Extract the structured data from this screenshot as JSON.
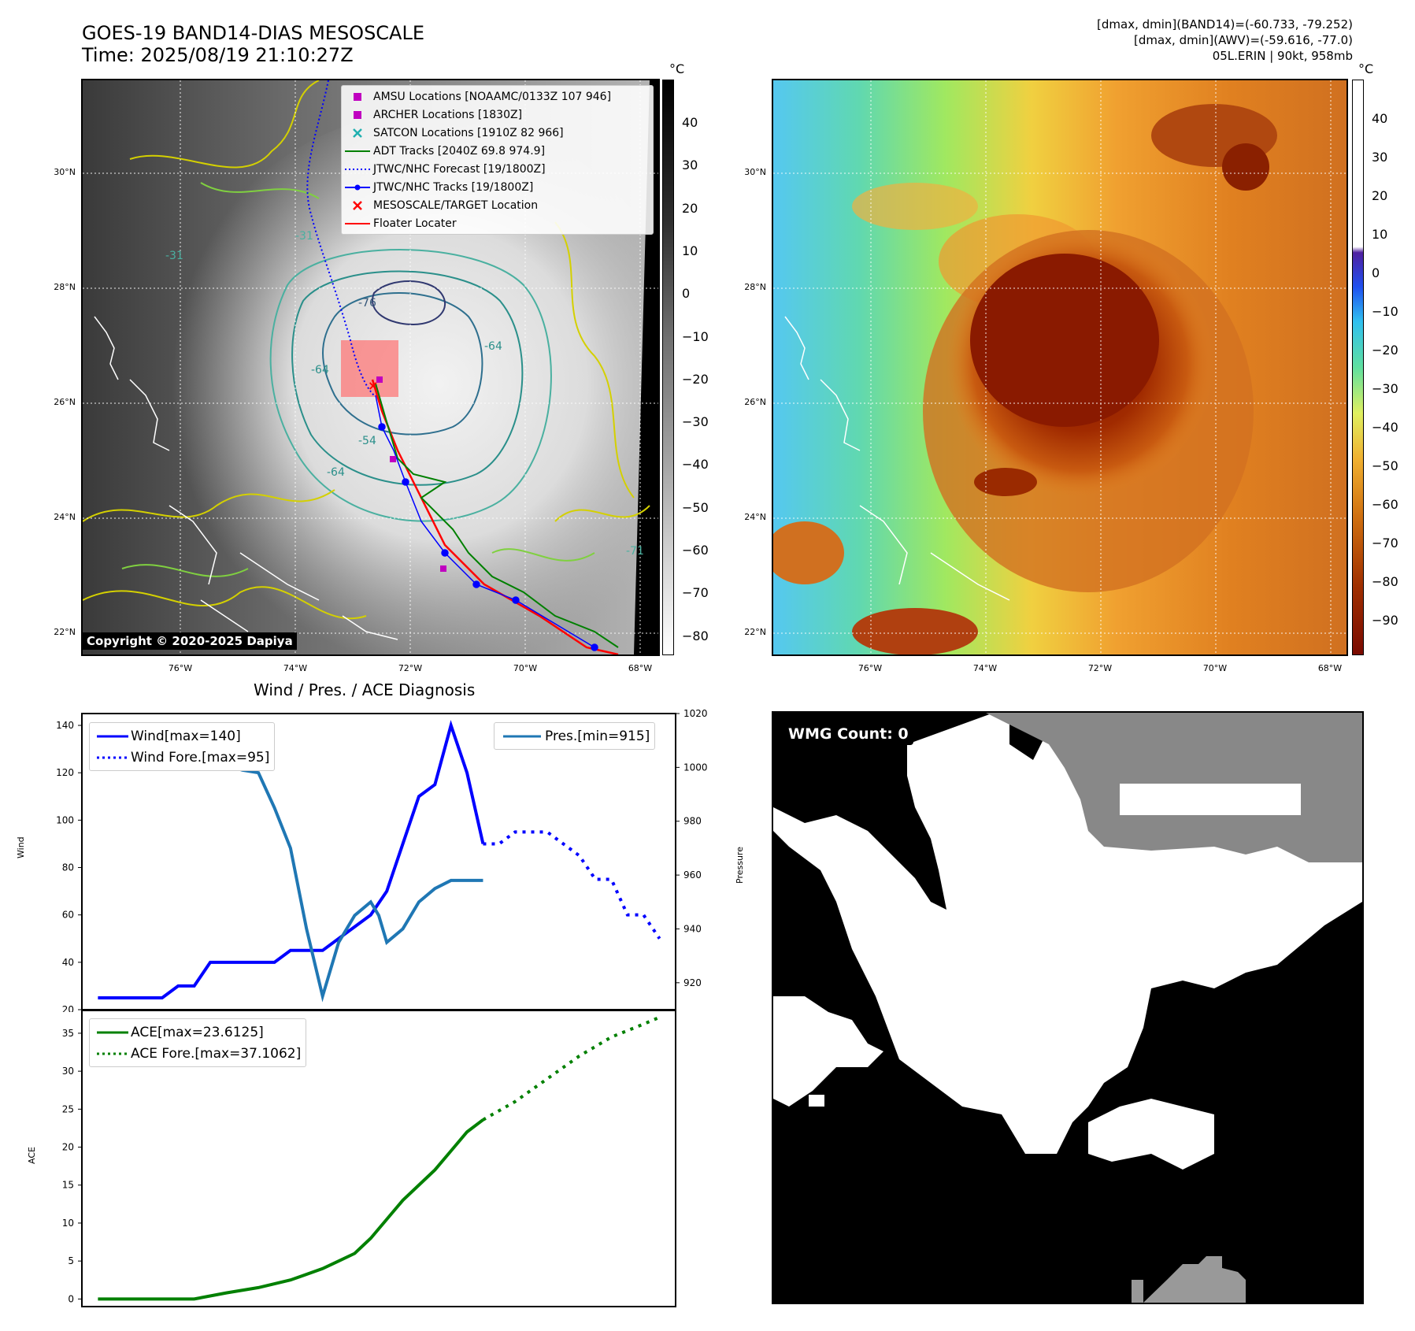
{
  "header": {
    "title_line1": "GOES-19 BAND14-DIAS MESOSCALE",
    "title_line2": "Time: 2025/08/19 21:10:27Z",
    "info_line1": "[dmax, dmin](BAND14)=(-60.733, -79.252)",
    "info_line2": "[dmax, dmin](AWV)=(-59.616, -77.0)",
    "info_line3": "05L.ERIN | 90kt, 958mb"
  },
  "map_axes": {
    "lat_labels": [
      "30°N",
      "28°N",
      "26°N",
      "24°N",
      "22°N"
    ],
    "lon_labels": [
      "76°W",
      "74°W",
      "72°W",
      "70°W",
      "68°W"
    ]
  },
  "ir_colorbar": {
    "unit": "°C",
    "ticks": [
      "40",
      "30",
      "20",
      "10",
      "0",
      "−10",
      "−20",
      "−30",
      "−40",
      "−50",
      "−60",
      "−70",
      "−80"
    ]
  },
  "awv_colorbar": {
    "unit": "°C",
    "ticks": [
      "40",
      "30",
      "20",
      "10",
      "0",
      "−10",
      "−20",
      "−30",
      "−40",
      "−50",
      "−60",
      "−70",
      "−80",
      "−90"
    ]
  },
  "ir_legend": [
    {
      "label": "AMSU Locations [NOAAMC/0133Z 107 946]",
      "symbol": "square",
      "color": "#c000c0"
    },
    {
      "label": "ARCHER Locations [1830Z]",
      "symbol": "square",
      "color": "#c000c0"
    },
    {
      "label": "SATCON Locations [1910Z 82 966]",
      "symbol": "x",
      "color": "#20b0b0"
    },
    {
      "label": "ADT Tracks [2040Z 69.8 974.9]",
      "symbol": "line",
      "color": "#008000"
    },
    {
      "label": "JTWC/NHC Forecast [19/1800Z]",
      "symbol": "dotted",
      "color": "#0000ff"
    },
    {
      "label": "JTWC/NHC Tracks [19/1800Z]",
      "symbol": "line-dot",
      "color": "#0000ff"
    },
    {
      "label": "MESOSCALE/TARGET Location",
      "symbol": "x",
      "color": "#ff0000"
    },
    {
      "label": "Floater Locater",
      "symbol": "line",
      "color": "#ff0000"
    }
  ],
  "contour_labels": [
    "-31",
    "-31",
    "-76",
    "-64",
    "-64",
    "-54",
    "-64",
    "-71"
  ],
  "copyright": "Copyright © 2020-2025 Dapiya",
  "wmg_label": "WMG Count: 0",
  "chart_data": [
    {
      "type": "line",
      "title": "Wind / Pres. / ACE Diagnosis",
      "ylabel": "Wind",
      "y2label": "Pressure",
      "ylim": [
        20,
        145
      ],
      "y2lim": [
        910,
        1020
      ],
      "yticks": [
        "140",
        "120",
        "100",
        "80",
        "60",
        "40",
        "20"
      ],
      "y2ticks": [
        "1020",
        "1000",
        "980",
        "960",
        "940",
        "920"
      ],
      "series": [
        {
          "name": "Wind[max=140]",
          "color": "#0000ff",
          "style": "solid",
          "x": [
            0,
            1,
            2,
            3,
            4,
            5,
            6,
            7,
            8,
            9,
            10,
            11,
            12,
            13,
            14,
            15,
            16,
            17,
            17.5,
            18,
            19,
            20,
            21,
            22,
            23,
            24
          ],
          "values": [
            25,
            25,
            25,
            25,
            25,
            30,
            30,
            40,
            40,
            40,
            40,
            40,
            45,
            45,
            45,
            50,
            55,
            60,
            65,
            70,
            90,
            110,
            115,
            140,
            120,
            90
          ]
        },
        {
          "name": "Wind Fore.[max=95]",
          "color": "#0000ff",
          "style": "dotted",
          "x": [
            24,
            25,
            26,
            27,
            28,
            29,
            30,
            31,
            32,
            33,
            34,
            35
          ],
          "values": [
            90,
            90,
            95,
            95,
            95,
            90,
            85,
            75,
            75,
            60,
            60,
            50
          ]
        },
        {
          "name": "Pres.[min=915]",
          "color": "#1f77b4",
          "style": "solid",
          "x": [
            0,
            1,
            2,
            3,
            4,
            5,
            6,
            7,
            8,
            9,
            10,
            11,
            12,
            13,
            14,
            15,
            16,
            17,
            17.5,
            18,
            19,
            20,
            21,
            22,
            23,
            24
          ],
          "values": [
            1013,
            1013,
            1008,
            1006,
            1005,
            1004,
            1003,
            1002,
            1001,
            999,
            998,
            985,
            970,
            940,
            915,
            935,
            945,
            950,
            945,
            935,
            940,
            950,
            955,
            958,
            958,
            958
          ]
        }
      ]
    },
    {
      "type": "line",
      "ylabel": "ACE",
      "ylim": [
        -1,
        38
      ],
      "yticks": [
        "35",
        "30",
        "25",
        "20",
        "15",
        "10",
        "5",
        "0"
      ],
      "series": [
        {
          "name": "ACE[max=23.6125]",
          "color": "#008000",
          "style": "solid",
          "x": [
            0,
            2,
            4,
            6,
            8,
            10,
            12,
            14,
            15,
            16,
            17,
            18,
            19,
            20,
            21,
            22,
            23,
            24
          ],
          "values": [
            0,
            0,
            0,
            0,
            0.8,
            1.5,
            2.5,
            4,
            5,
            6,
            8,
            10.5,
            13,
            15,
            17,
            19.5,
            22,
            23.6
          ]
        },
        {
          "name": "ACE Fore.[max=37.1062]",
          "color": "#008000",
          "style": "dotted",
          "x": [
            24,
            26,
            28,
            30,
            32,
            34,
            35
          ],
          "values": [
            23.6,
            26,
            29,
            32,
            34.5,
            36.2,
            37.1
          ]
        }
      ]
    }
  ]
}
